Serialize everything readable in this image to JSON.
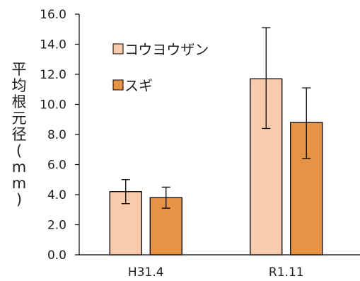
{
  "chart_data": {
    "type": "bar",
    "categories": [
      "H31.4",
      "R1.11"
    ],
    "series": [
      {
        "name": "コウヨウザン",
        "values": [
          4.2,
          11.7
        ],
        "error": [
          [
            3.4,
            5.0
          ],
          [
            8.4,
            15.1
          ]
        ],
        "color": "#f8cbad"
      },
      {
        "name": "スギ",
        "values": [
          3.8,
          8.8
        ],
        "error": [
          [
            3.1,
            4.5
          ],
          [
            6.4,
            11.1
          ]
        ],
        "color": "#e69345"
      }
    ],
    "ylabel": "平均根元径(mm)",
    "ylim": [
      0,
      16
    ],
    "yticks": [
      "0.0",
      "2.0",
      "4.0",
      "6.0",
      "8.0",
      "10.0",
      "12.0",
      "14.0",
      "16.0"
    ],
    "legend": "top-left",
    "grid": false
  }
}
